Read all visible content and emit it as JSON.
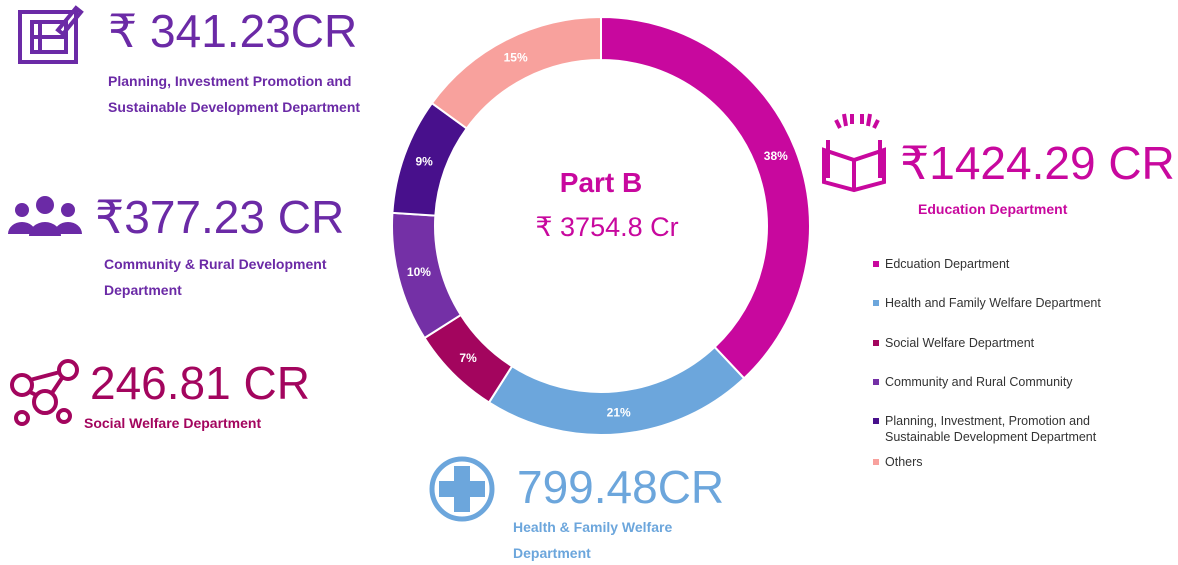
{
  "chart_data": {
    "type": "donut",
    "title": "Part B",
    "subtitle": "₹ 3754.8 Cr",
    "categories": [
      "Edcuation Department",
      "Health and Family Welfare Department",
      "Social Welfare Department",
      "Community and Rural Community",
      "Planning, Investment, Promotion and Sustainable Development Department",
      "Others"
    ],
    "values": [
      38,
      21,
      7,
      10,
      9,
      15
    ],
    "value_labels": [
      "38%",
      "21%",
      "7%",
      "10%",
      "9%",
      "15%"
    ],
    "colors": [
      "#c8089e",
      "#6ca6dc",
      "#a3055e",
      "#7430a6",
      "#48108c",
      "#f8a19d"
    ]
  },
  "callouts": [
    {
      "amount": "₹ 341.23CR",
      "label": "Planning, Investment Promotion and Sustainable Development Department",
      "color": "#6b2aa6"
    },
    {
      "amount": "₹377.23 CR",
      "label": "Community & Rural Development Department",
      "color": "#6b2aa6"
    },
    {
      "amount": "246.81 CR",
      "label": "Social Welfare Department",
      "color": "#a3055e"
    },
    {
      "amount": "799.48CR",
      "label": "Health & Family Welfare Department",
      "color": "#6ca6dc"
    },
    {
      "amount": "₹1424.29 CR",
      "label": "Education Department",
      "color": "#c8089e"
    }
  ]
}
